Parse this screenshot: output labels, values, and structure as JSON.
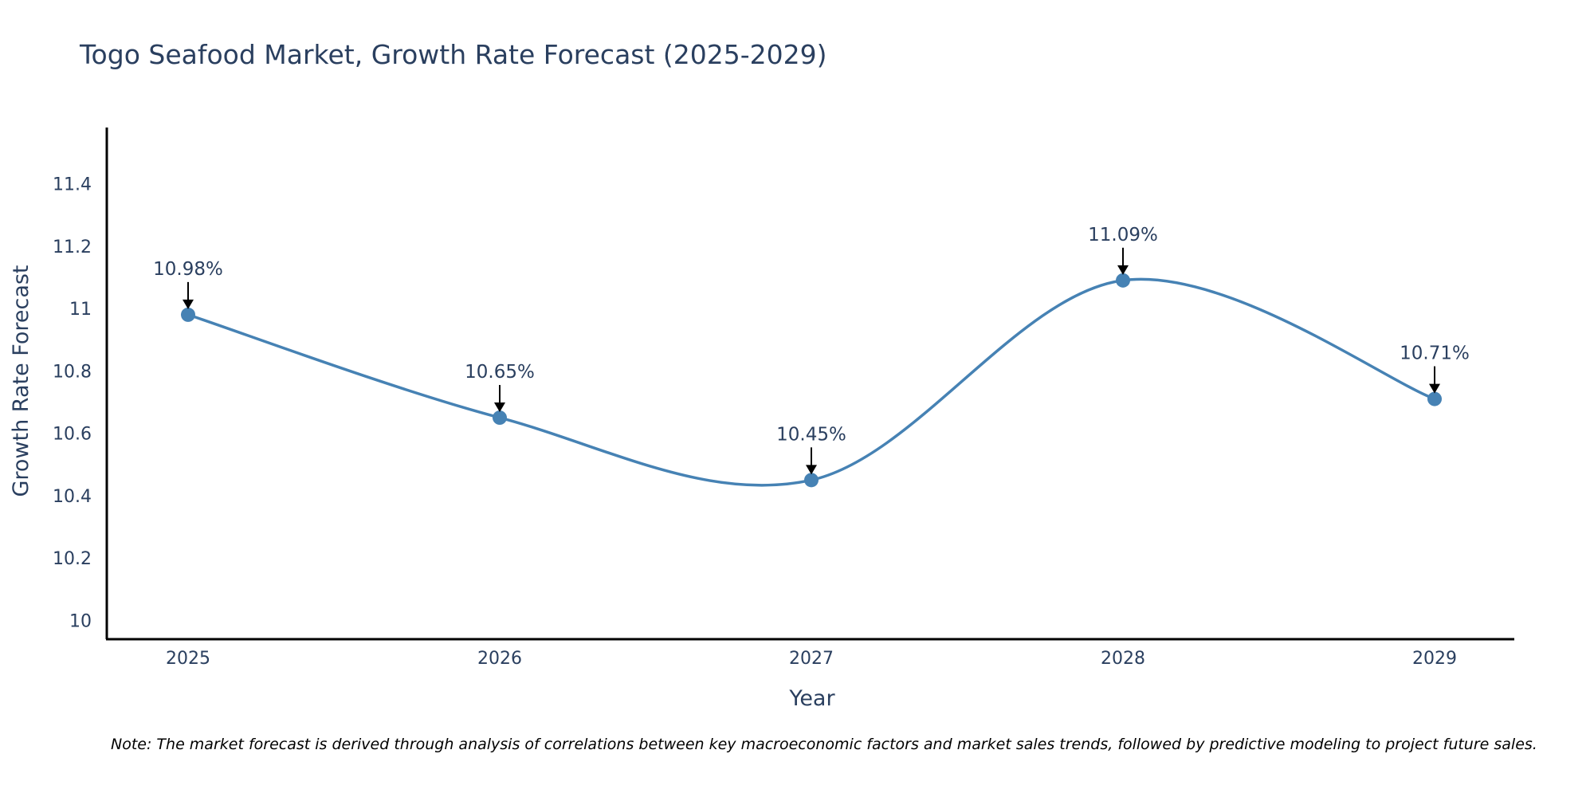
{
  "chart_data": {
    "type": "line",
    "title": "Togo Seafood Market, Growth Rate Forecast (2025-2029)",
    "xlabel": "Year",
    "ylabel": "Growth Rate Forecast",
    "categories": [
      "2025",
      "2026",
      "2027",
      "2028",
      "2029"
    ],
    "series": [
      {
        "name": "Growth Rate Forecast",
        "values": [
          10.98,
          10.65,
          10.45,
          11.09,
          10.71
        ]
      }
    ],
    "data_labels": [
      "10.98%",
      "10.65%",
      "10.45%",
      "11.09%",
      "10.71%"
    ],
    "y_ticks": [
      10,
      10.2,
      10.4,
      10.6,
      10.8,
      11,
      11.2,
      11.4
    ],
    "y_tick_labels": [
      "10",
      "10.2",
      "10.4",
      "10.6",
      "10.8",
      "11",
      "11.2",
      "11.4"
    ],
    "ylim": [
      9.94,
      11.58
    ],
    "grid": false,
    "line_shape": "spline",
    "color": "#4682b4",
    "note": "Note: The market forecast is derived through analysis of correlations between key macroeconomic factors and market sales trends, followed by predictive modeling to project future sales."
  }
}
